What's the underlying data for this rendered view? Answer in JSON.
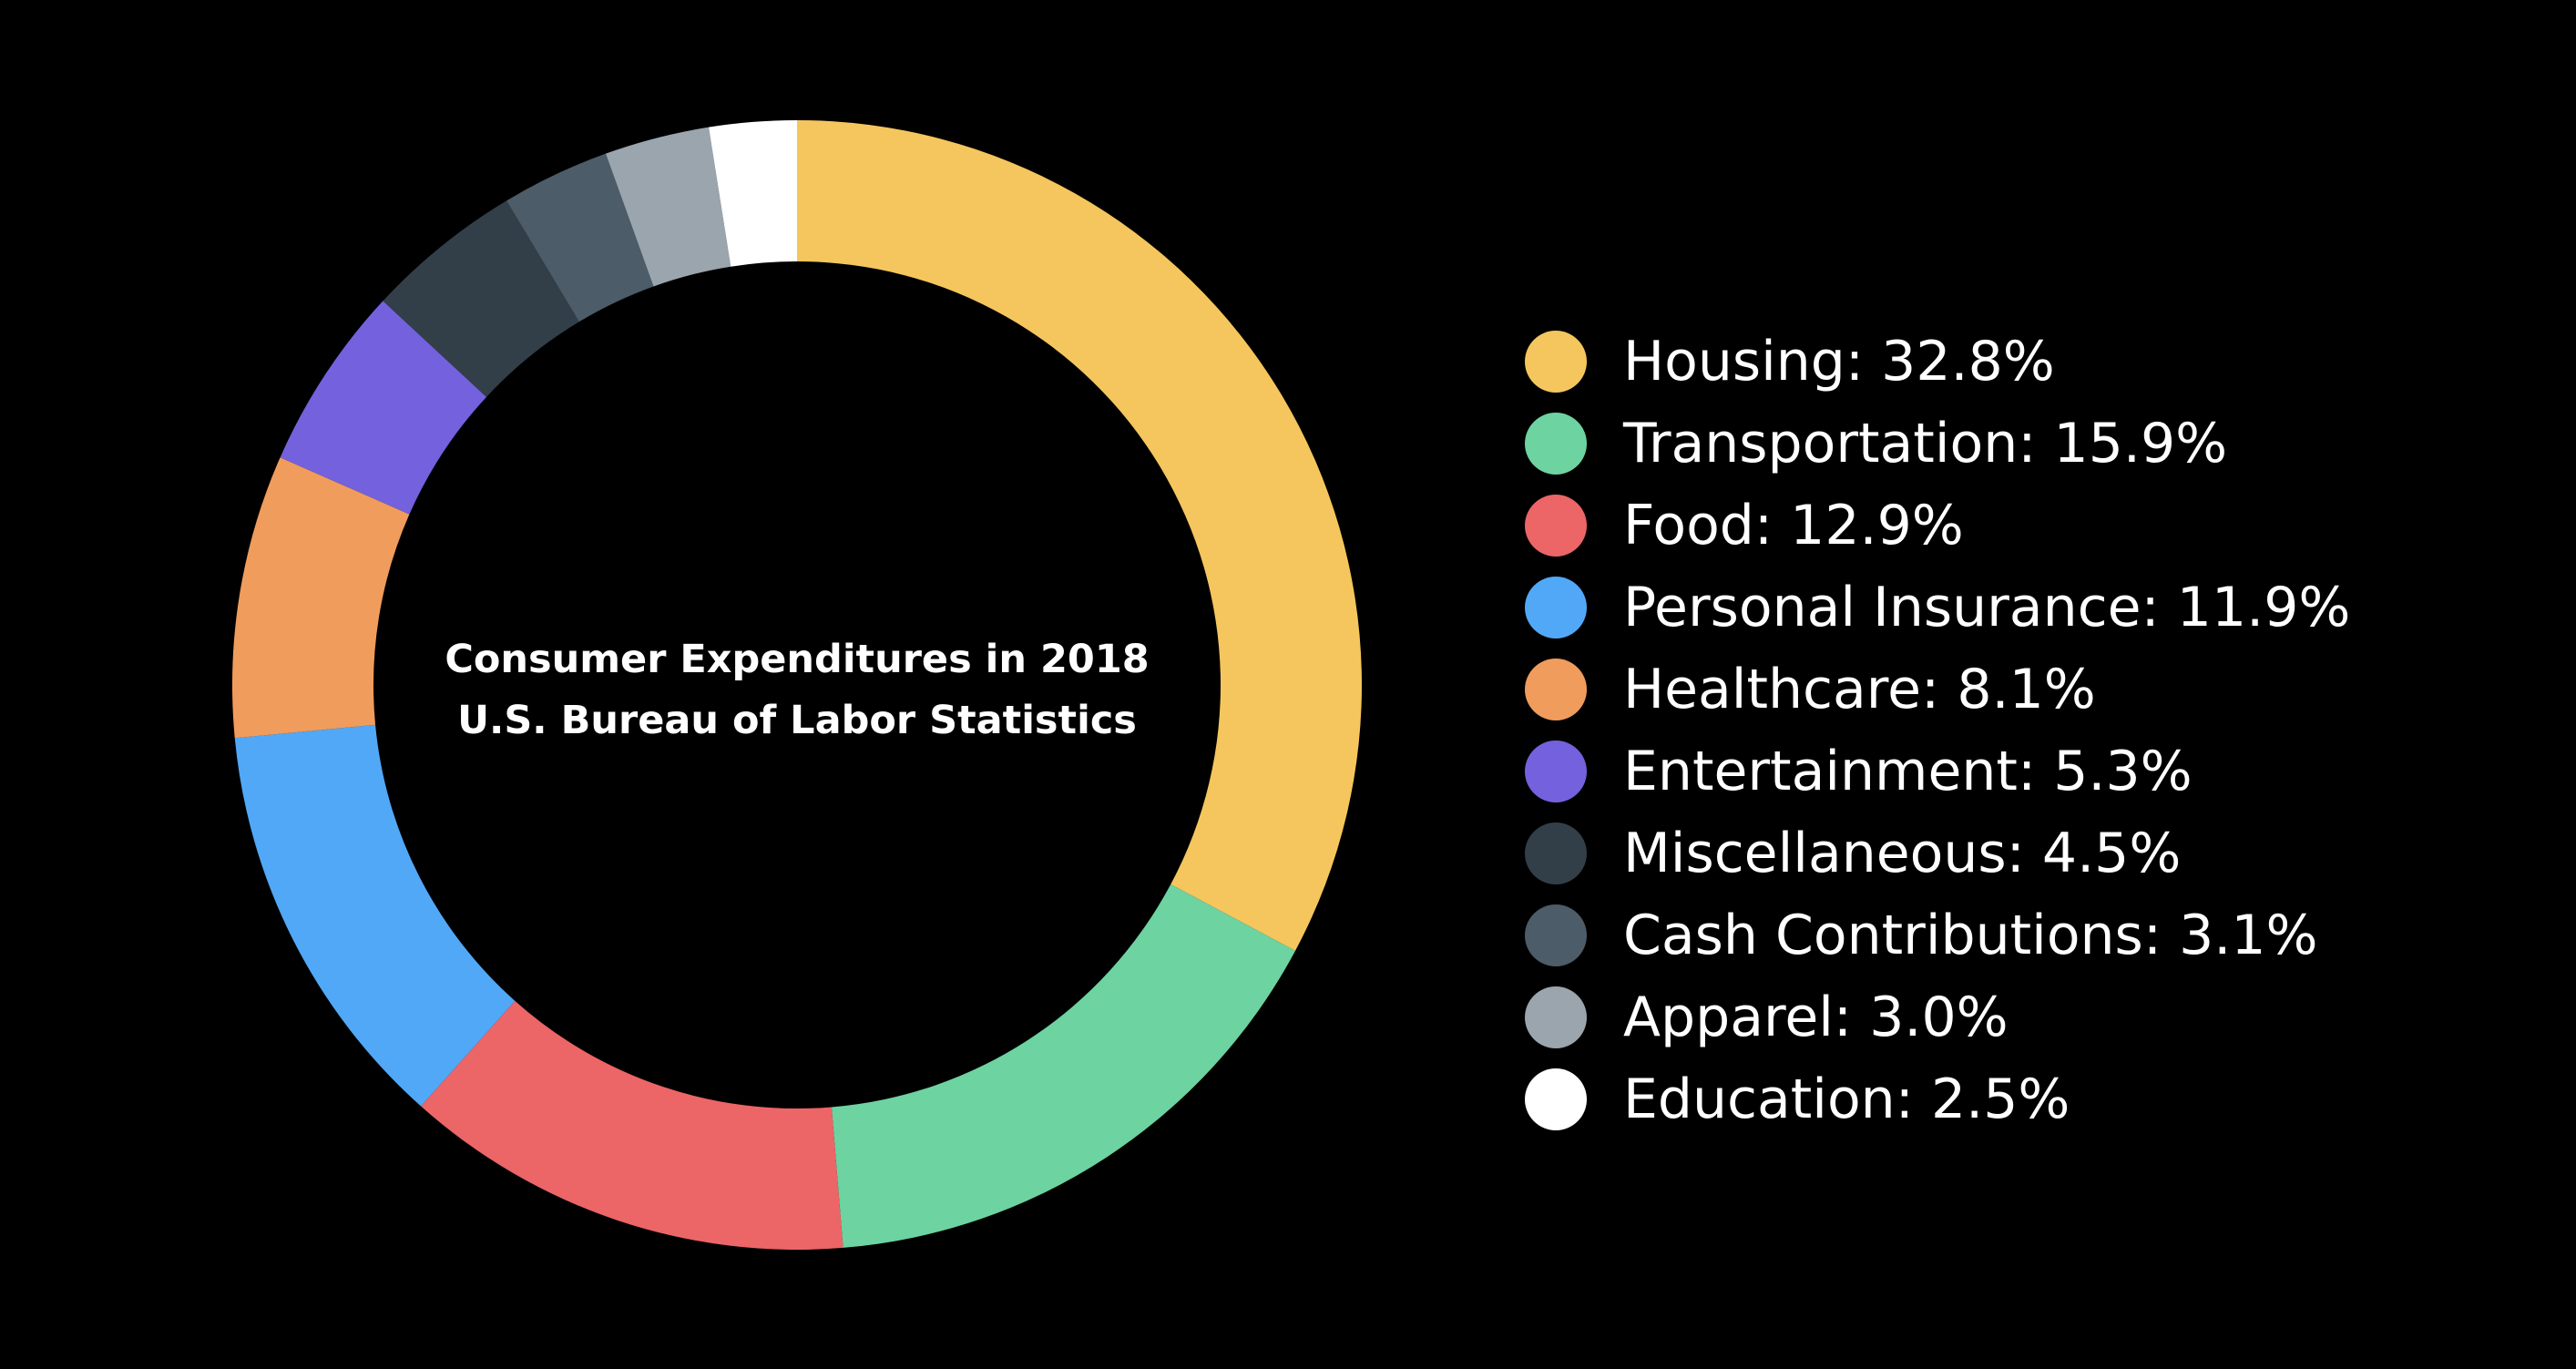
{
  "chart_data": {
    "type": "pie",
    "style": "donut",
    "title_lines": [
      "Consumer Expenditures in 2018",
      "U.S. Bureau of Labor Statistics"
    ],
    "legend_placement": "right",
    "slices": [
      {
        "label": "Housing",
        "value": 32.8,
        "display": "Housing: 32.8%",
        "color": "#F5C65D"
      },
      {
        "label": "Transportation",
        "value": 15.9,
        "display": "Transportation: 15.9%",
        "color": "#6DD3A0"
      },
      {
        "label": "Food",
        "value": 12.9,
        "display": "Food: 12.9%",
        "color": "#EC6567"
      },
      {
        "label": "Personal Insurance",
        "value": 11.9,
        "display": "Personal Insurance: 11.9%",
        "color": "#51A8F7"
      },
      {
        "label": "Healthcare",
        "value": 8.1,
        "display": "Healthcare: 8.1%",
        "color": "#F09C5C"
      },
      {
        "label": "Entertainment",
        "value": 5.3,
        "display": "Entertainment: 5.3%",
        "color": "#7461DD"
      },
      {
        "label": "Miscellaneous",
        "value": 4.5,
        "display": "Miscellaneous: 4.5%",
        "color": "#323F49"
      },
      {
        "label": "Cash Contributions",
        "value": 3.1,
        "display": "Cash Contributions: 3.1%",
        "color": "#4C5C68"
      },
      {
        "label": "Apparel",
        "value": 3.0,
        "display": "Apparel: 3.0%",
        "color": "#9AA5AE"
      },
      {
        "label": "Education",
        "value": 2.5,
        "display": "Education: 2.5%",
        "color": "#FFFFFF"
      }
    ]
  }
}
